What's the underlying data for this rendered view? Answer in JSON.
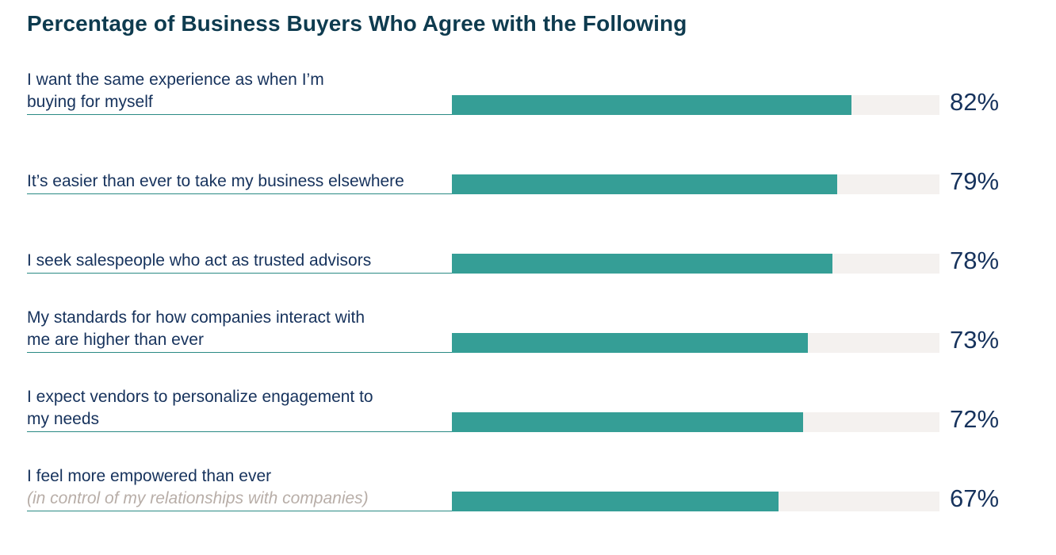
{
  "chart_data": {
    "type": "bar",
    "orientation": "horizontal",
    "title": "Percentage of Business Buyers Who Agree with the Following",
    "xlim": [
      0,
      100
    ],
    "colors": {
      "bar": "#359e96",
      "track": "#f4f1ef",
      "title": "#0e3b4f",
      "text": "#16325c",
      "note": "#b8aea8"
    },
    "categories": [
      {
        "label": "I want the same experience as when I’m buying for myself",
        "note": ""
      },
      {
        "label": "It’s easier than ever to take my business elsewhere",
        "note": ""
      },
      {
        "label": "I seek salespeople who act as trusted advisors",
        "note": ""
      },
      {
        "label": "My standards for how companies interact with me are higher than ever",
        "note": ""
      },
      {
        "label": "I expect vendors to personalize engagement to my needs",
        "note": ""
      },
      {
        "label": "I feel more empowered than ever",
        "note": "(in control of my relationships with companies)"
      }
    ],
    "values": [
      82,
      79,
      78,
      73,
      72,
      67
    ],
    "value_labels": [
      "82%",
      "79%",
      "78%",
      "73%",
      "72%",
      "67%"
    ]
  }
}
